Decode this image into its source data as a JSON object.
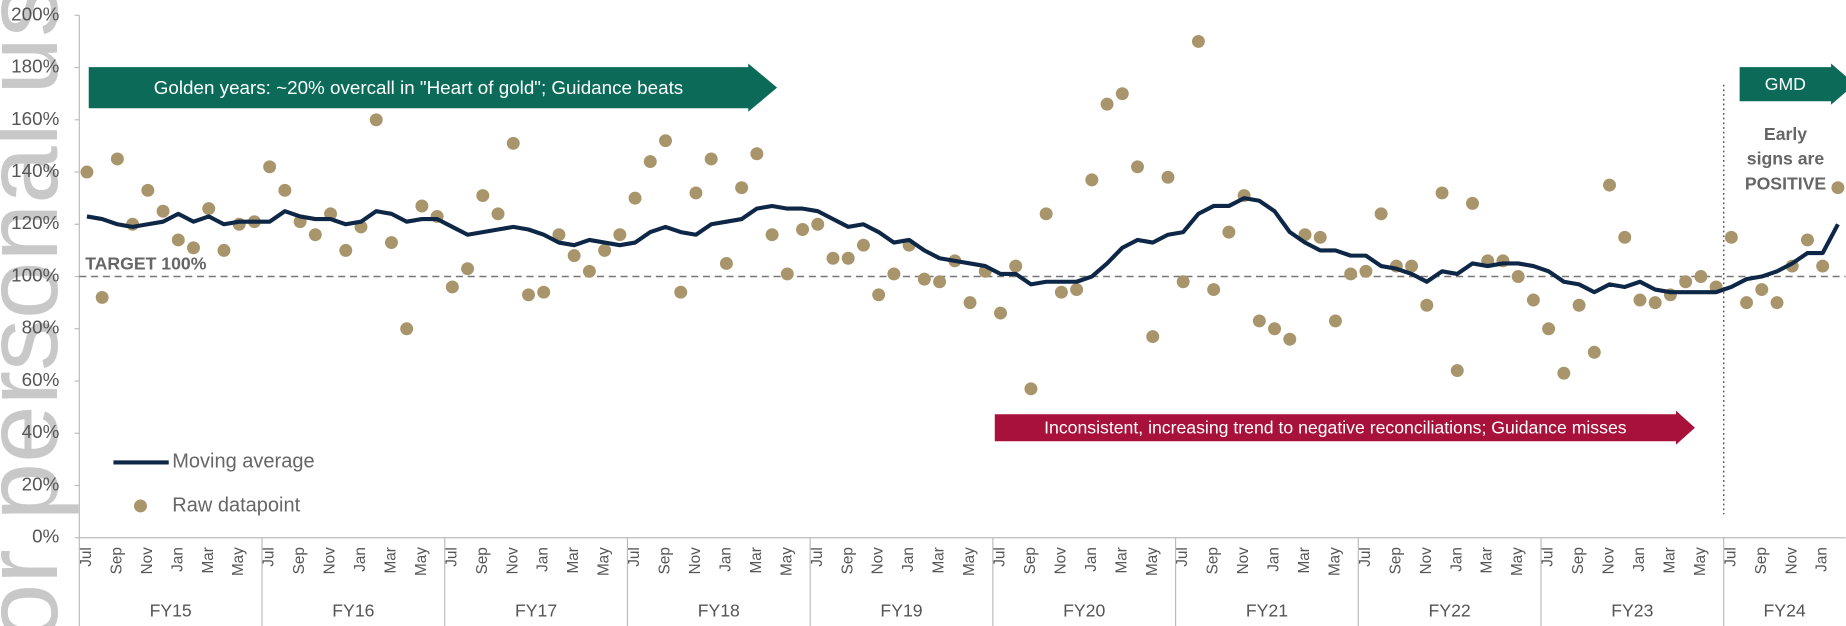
{
  "chart_data": {
    "type": "line_scatter",
    "watermark": "or personal use only",
    "categories": [
      "Jul",
      null,
      "Sep",
      null,
      "Nov",
      null,
      "Jan",
      null,
      "Mar",
      null,
      "May",
      null,
      "Jul",
      null,
      "Sep",
      null,
      "Nov",
      null,
      "Jan",
      null,
      "Mar",
      null,
      "May",
      null,
      "Jul",
      null,
      "Sep",
      null,
      "Nov",
      null,
      "Jan",
      null,
      "Mar",
      null,
      "May",
      null,
      "Jul",
      null,
      "Sep",
      null,
      "Nov",
      null,
      "Jan",
      null,
      "Mar",
      null,
      "May",
      null,
      "Jul",
      null,
      "Sep",
      null,
      "Nov",
      null,
      "Jan",
      null,
      "Mar",
      null,
      "May",
      null,
      "Jul",
      null,
      "Sep",
      null,
      "Nov",
      null,
      "Jan",
      null,
      "Mar",
      null,
      "May",
      null,
      "Jul",
      null,
      "Sep",
      null,
      "Nov",
      null,
      "Jan",
      null,
      "Mar",
      null,
      "May",
      null,
      "Jul",
      null,
      "Sep",
      null,
      "Nov",
      null,
      "Jan",
      null,
      "Mar",
      null,
      "May",
      null,
      "Jul",
      null,
      "Sep",
      null,
      "Nov",
      null,
      "Jan",
      null,
      "Mar",
      null,
      "May",
      null,
      "Jul",
      null,
      "Sep",
      null,
      "Nov",
      null,
      "Jan",
      null
    ],
    "fiscal_years": [
      "FY15",
      "FY16",
      "FY17",
      "FY18",
      "FY19",
      "FY20",
      "FY21",
      "FY22",
      "FY23",
      "FY24"
    ],
    "series": [
      {
        "name": "Moving average",
        "color": "#0e2747",
        "style": "line",
        "values": [
          123,
          122,
          120,
          119,
          120,
          121,
          124,
          121,
          123,
          120,
          121,
          121,
          121,
          125,
          123,
          122,
          122,
          120,
          121,
          125,
          124,
          121,
          122,
          122,
          119,
          116,
          117,
          118,
          119,
          118,
          116,
          113,
          112,
          114,
          113,
          112,
          113,
          117,
          119,
          117,
          116,
          120,
          121,
          122,
          126,
          127,
          126,
          126,
          125,
          122,
          119,
          120,
          117,
          113,
          114,
          110,
          107,
          106,
          105,
          104,
          101,
          101,
          97,
          98,
          98,
          98,
          100,
          105,
          111,
          114,
          113,
          116,
          117,
          124,
          127,
          127,
          130,
          129,
          125,
          117,
          113,
          110,
          110,
          108,
          108,
          104,
          103,
          101,
          98,
          102,
          101,
          105,
          104,
          105,
          105,
          104,
          102,
          98,
          97,
          94,
          97,
          96,
          98,
          95,
          94,
          94,
          94,
          94,
          96,
          99,
          100,
          102,
          105,
          109,
          109,
          120
        ]
      },
      {
        "name": "Raw datapoint",
        "color": "#a9956b",
        "style": "points",
        "values": [
          140,
          92,
          145,
          120,
          133,
          125,
          114,
          111,
          126,
          110,
          120,
          121,
          142,
          133,
          121,
          116,
          124,
          110,
          119,
          160,
          113,
          80,
          127,
          123,
          96,
          103,
          131,
          124,
          151,
          93,
          94,
          116,
          108,
          102,
          110,
          116,
          130,
          144,
          152,
          94,
          132,
          145,
          105,
          134,
          147,
          116,
          101,
          118,
          120,
          107,
          107,
          112,
          93,
          101,
          112,
          99,
          98,
          106,
          90,
          102,
          86,
          104,
          57,
          124,
          94,
          95,
          137,
          166,
          170,
          142,
          77,
          138,
          98,
          190,
          95,
          117,
          131,
          83,
          80,
          76,
          116,
          115,
          83,
          101,
          102,
          124,
          104,
          104,
          89,
          132,
          64,
          128,
          106,
          106,
          100,
          91,
          80,
          63,
          89,
          71,
          135,
          115,
          91,
          90,
          93,
          98,
          100,
          96,
          115,
          90,
          95,
          90,
          104,
          114,
          104,
          134
        ]
      }
    ],
    "ylim": [
      0,
      200
    ],
    "yticks": [
      {
        "value": 0,
        "label": "0%"
      },
      {
        "value": 20,
        "label": "20%"
      },
      {
        "value": 40,
        "label": "40%"
      },
      {
        "value": 60,
        "label": "60%"
      },
      {
        "value": 80,
        "label": "80%"
      },
      {
        "value": 100,
        "label": "100%"
      },
      {
        "value": 120,
        "label": "120%"
      },
      {
        "value": 140,
        "label": "140%"
      },
      {
        "value": 160,
        "label": "160%"
      },
      {
        "value": 180,
        "label": "180%"
      },
      {
        "value": 200,
        "label": "200%"
      }
    ],
    "target": {
      "value": 100,
      "label": "TARGET 100%"
    },
    "annotations": [
      {
        "text": "Golden years: ~20% overcall in \"Heart of gold\"; Guidance beats",
        "color": "#0b6b58"
      },
      {
        "text": "Inconsistent, increasing trend to negative reconciliations; Guidance misses",
        "color": "#a8123a"
      },
      {
        "text": "GMD",
        "color": "#0b6b58"
      }
    ],
    "note": [
      "Early",
      "signs are",
      "POSITIVE"
    ],
    "legend": "bottom-left"
  }
}
